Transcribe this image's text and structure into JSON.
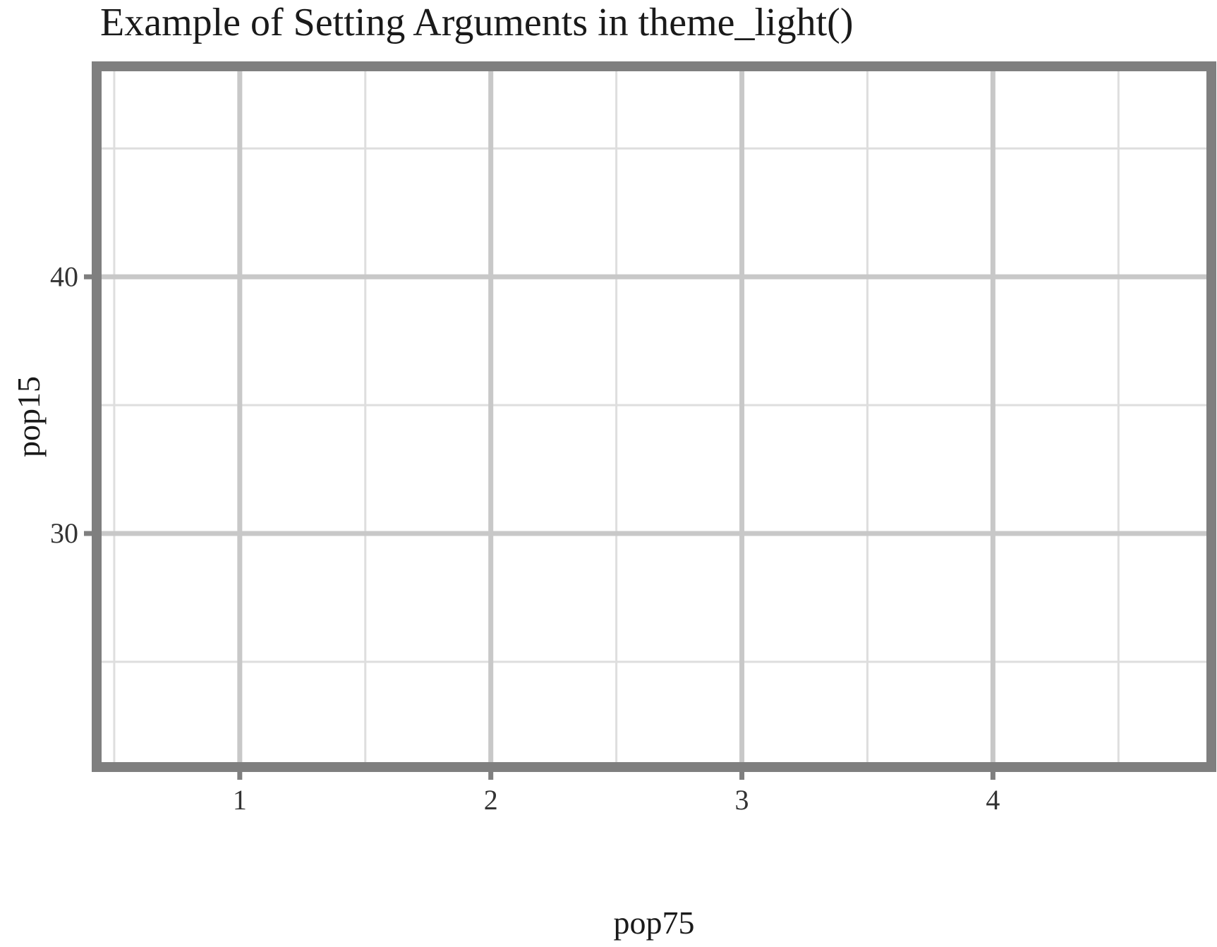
{
  "chart_data": {
    "type": "scatter",
    "title": "Example of Setting Arguments in theme_light()",
    "xlabel": "pop75",
    "ylabel": "pop15",
    "x_ticks": [
      1,
      2,
      3,
      4
    ],
    "y_ticks": [
      30,
      40
    ],
    "xlim": [
      0.43,
      4.87
    ],
    "ylim": [
      20.9,
      48.2
    ],
    "series": [
      {
        "points": []
      }
    ],
    "grid": true,
    "colors": {
      "panel_border": "#7f7f7f",
      "major_grid": "#c8c8c8",
      "minor_grid": "#dedede",
      "tick": "#7f7f7f",
      "text": "#1a1a1a"
    }
  }
}
